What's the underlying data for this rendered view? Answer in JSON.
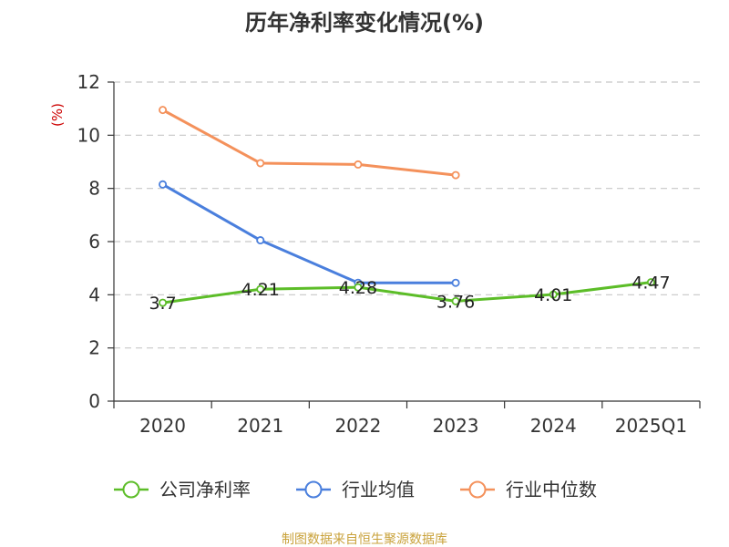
{
  "chart_data": {
    "type": "line",
    "title": "历年净利率变化情况(%)",
    "ylabel": "(%)",
    "categories": [
      "2020",
      "2021",
      "2022",
      "2023",
      "2024",
      "2025Q1"
    ],
    "ylim": [
      0,
      12
    ],
    "yticks": [
      0,
      2,
      4,
      6,
      8,
      10,
      12
    ],
    "grid": true,
    "legend_position": "bottom",
    "series": [
      {
        "name": "公司净利率",
        "color": "#5cbd28",
        "values": [
          3.7,
          4.21,
          4.28,
          3.76,
          4.01,
          4.47
        ],
        "labels": [
          "3.7",
          "4.21",
          "4.28",
          "3.76",
          "4.01",
          "4.47"
        ]
      },
      {
        "name": "行业均值",
        "color": "#4a7fdd",
        "values": [
          8.15,
          6.05,
          4.45,
          4.45,
          null,
          null
        ]
      },
      {
        "name": "行业中位数",
        "color": "#f4915b",
        "values": [
          10.95,
          8.95,
          8.9,
          8.5,
          null,
          null
        ]
      }
    ],
    "source": "制图数据来自恒生聚源数据库"
  }
}
